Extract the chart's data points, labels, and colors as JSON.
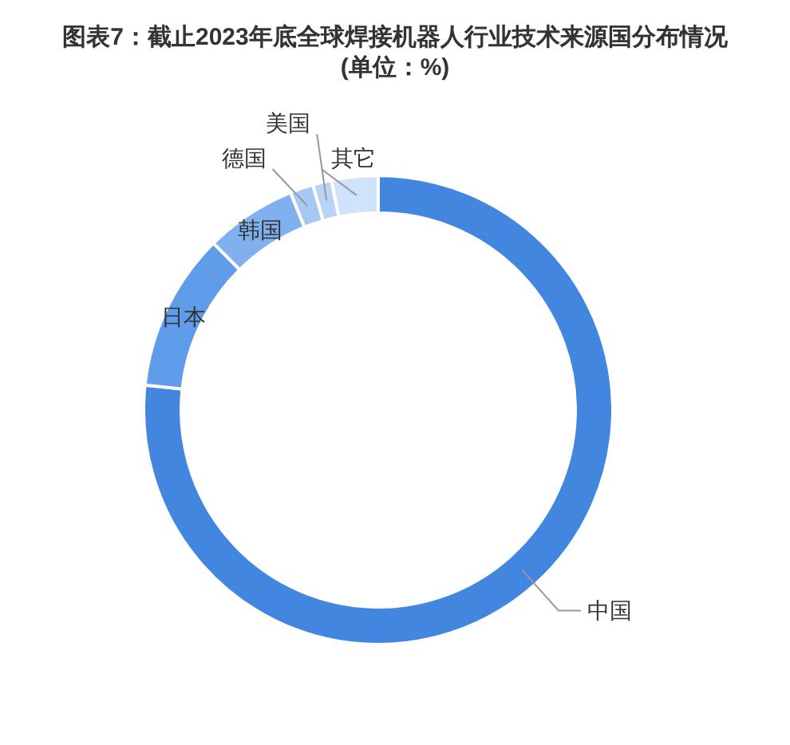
{
  "chart_data": {
    "type": "donut",
    "title": "图表7：截止2023年底全球焊接机器人行业技术来源国分布情况(单位：%)",
    "categories": [
      "中国",
      "日本",
      "韩国",
      "德国",
      "美国",
      "其它"
    ],
    "values": [
      76.7,
      10.9,
      6.3,
      1.6,
      1.3,
      3.2
    ],
    "colors": [
      "#4286e0",
      "#5f9ce9",
      "#80b1ee",
      "#a6c8f4",
      "#b8d4f6",
      "#cfe3fa"
    ]
  }
}
